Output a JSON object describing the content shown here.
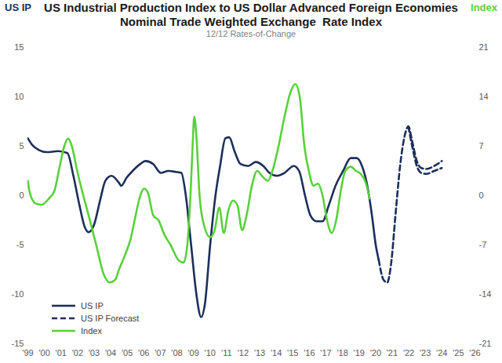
{
  "chart_data": {
    "type": "line",
    "title": "US Industrial Production Index to US Dollar Advanced Foreign Economies\nNominal Trade Weighted Exchange  Rate Index",
    "subtitle": "12/12 Rates-of-Change",
    "y_label": "US IP",
    "y2_label": "Index",
    "xlim": [
      1999,
      2026
    ],
    "xticks": [
      {
        "value": 1999,
        "label": "'99"
      },
      {
        "value": 2000,
        "label": "'00"
      },
      {
        "value": 2001,
        "label": "'01"
      },
      {
        "value": 2002,
        "label": "'02"
      },
      {
        "value": 2003,
        "label": "'03"
      },
      {
        "value": 2004,
        "label": "'04"
      },
      {
        "value": 2005,
        "label": "'05"
      },
      {
        "value": 2006,
        "label": "'06"
      },
      {
        "value": 2007,
        "label": "'07"
      },
      {
        "value": 2008,
        "label": "'08"
      },
      {
        "value": 2009,
        "label": "'09"
      },
      {
        "value": 2010,
        "label": "'10"
      },
      {
        "value": 2011,
        "label": "'11"
      },
      {
        "value": 2012,
        "label": "'12"
      },
      {
        "value": 2013,
        "label": "'13"
      },
      {
        "value": 2014,
        "label": "'14"
      },
      {
        "value": 2015,
        "label": "'15"
      },
      {
        "value": 2016,
        "label": "'16"
      },
      {
        "value": 2017,
        "label": "'17"
      },
      {
        "value": 2018,
        "label": "'18"
      },
      {
        "value": 2019,
        "label": "'19"
      },
      {
        "value": 2020,
        "label": "'20"
      },
      {
        "value": 2021,
        "label": "'21"
      },
      {
        "value": 2022,
        "label": "'22"
      },
      {
        "value": 2023,
        "label": "'23"
      },
      {
        "value": 2024,
        "label": "'24"
      },
      {
        "value": 2025,
        "label": "'25"
      },
      {
        "value": 2026,
        "label": "'26"
      }
    ],
    "ylim": [
      -15,
      15
    ],
    "yticks": [
      -15,
      -10,
      -5,
      0,
      5,
      10,
      15
    ],
    "y2lim": [
      -21,
      21
    ],
    "y2ticks": [
      -21,
      -14,
      -7,
      0,
      7,
      14,
      21
    ],
    "grid": false,
    "legend": "lower left",
    "series": [
      {
        "name": "US IP",
        "color": "#1b2f5a",
        "line_style": "solid",
        "x": [
          1999.0,
          1999.23,
          1999.69,
          2000.15,
          2000.83,
          2001.39,
          2001.75,
          2002.12,
          2002.44,
          2002.67,
          2002.99,
          2003.36,
          2003.68,
          2004.05,
          2004.5,
          2004.64,
          2004.96,
          2005.33,
          2005.79,
          2006.11,
          2006.57,
          2007.03,
          2007.49,
          2007.94,
          2008.27,
          2008.54,
          2008.86,
          2009.18,
          2009.46,
          2009.69,
          2010.01,
          2010.33,
          2010.61,
          2010.93,
          2011.16,
          2011.48,
          2011.84,
          2012.3,
          2012.76,
          2013.22,
          2013.59,
          2014.05,
          2014.5,
          2015.06,
          2015.38,
          2015.74,
          2016.06,
          2016.43,
          2016.8,
          2017.17,
          2017.58,
          2018.04,
          2018.5,
          2018.86,
          2019.18,
          2019.5,
          2019.78,
          2020.01,
          2020.19
        ],
        "values": [
          5.8,
          5.2,
          4.6,
          4.4,
          4.5,
          4.3,
          2,
          -1,
          -3.2,
          -3.7,
          -3,
          -0.5,
          1.5,
          2,
          1.3,
          1,
          1.8,
          2.5,
          3.2,
          3.5,
          3.2,
          2.3,
          2.5,
          2.4,
          2.3,
          0,
          -5,
          -10,
          -12.3,
          -11,
          -5,
          0,
          3,
          5.8,
          5.9,
          4.5,
          3.2,
          3,
          3.4,
          3,
          2.3,
          2,
          2.3,
          3,
          2.5,
          0,
          -2,
          -2.6,
          -2.6,
          -1,
          1,
          2.5,
          3.8,
          3.8,
          3,
          1,
          -2,
          -5,
          -6.5
        ]
      },
      {
        "name": "US IP Forecast",
        "color": "#1b2f5a",
        "line_style": "dashed",
        "x": [
          2020.19,
          2020.47,
          2020.7,
          2020.93,
          2021.2,
          2021.48,
          2021.75,
          2021.98,
          2022.21,
          2022.49,
          2022.76,
          2023.08,
          2023.54,
          2024.0
        ],
        "values": [
          -6.5,
          -8.5,
          -8.8,
          -7,
          -2,
          3,
          6,
          7,
          5.5,
          3.5,
          2.8,
          2.7,
          3,
          3.5
        ]
      },
      {
        "name": "US IP Forecast",
        "color": "#1b2f5a",
        "line_style": "dashed",
        "x": [
          2021.98,
          2022.21,
          2022.49,
          2022.76,
          2023.08,
          2023.54,
          2024.0
        ],
        "values": [
          7,
          5,
          3,
          2.3,
          2.2,
          2.5,
          2.8
        ]
      },
      {
        "name": "Index",
        "color": "#59d13b",
        "line_style": "solid",
        "axis": "y2",
        "x": [
          1999.0,
          1999.09,
          1999.46,
          1999.83,
          2000.28,
          2000.61,
          2000.93,
          2001.2,
          2001.43,
          2001.66,
          2001.98,
          2002.35,
          2002.67,
          2003.13,
          2003.59,
          2003.95,
          2004.28,
          2004.5,
          2004.87,
          2005.19,
          2005.51,
          2005.79,
          2006.02,
          2006.25,
          2006.57,
          2006.89,
          2007.26,
          2007.62,
          2008.08,
          2008.4,
          2008.63,
          2008.82,
          2008.95,
          2009.05,
          2009.18,
          2009.37,
          2009.64,
          2010.01,
          2010.28,
          2010.56,
          2010.83,
          2011.11,
          2011.39,
          2011.66,
          2011.94,
          2012.21,
          2012.53,
          2012.85,
          2013.13,
          2013.5,
          2013.77,
          2014.14,
          2014.5,
          2014.87,
          2015.15,
          2015.42,
          2015.7,
          2015.97,
          2016.25,
          2016.52,
          2016.8,
          2017.07,
          2017.35,
          2017.62,
          2017.9,
          2018.17,
          2018.5,
          2018.82,
          2019.09,
          2019.41,
          2019.64
        ],
        "values": [
          2.1,
          0.7,
          -1.1,
          -1.3,
          -0.4,
          0.7,
          4.2,
          7,
          8.1,
          7,
          3.5,
          0,
          -2.8,
          -7,
          -11.2,
          -12.3,
          -11.9,
          -10.5,
          -8.4,
          -6.3,
          -2.8,
          0,
          1,
          0.4,
          -2.8,
          -3.5,
          -5.6,
          -7,
          -9.1,
          -9.5,
          -7,
          0,
          7,
          11.2,
          8.4,
          0,
          -4.2,
          -5.9,
          -4.9,
          -1.7,
          -5.3,
          -2.1,
          -0.7,
          -1.4,
          -4.9,
          -2.8,
          1.4,
          3.5,
          2.8,
          2.1,
          3.5,
          7,
          11.2,
          14.7,
          15.8,
          14,
          7,
          3.5,
          1.4,
          1.7,
          0,
          -3.5,
          -5.3,
          -3.5,
          0.7,
          3.5,
          4.1,
          3.5,
          3.1,
          1.8,
          -0.4
        ]
      }
    ]
  }
}
